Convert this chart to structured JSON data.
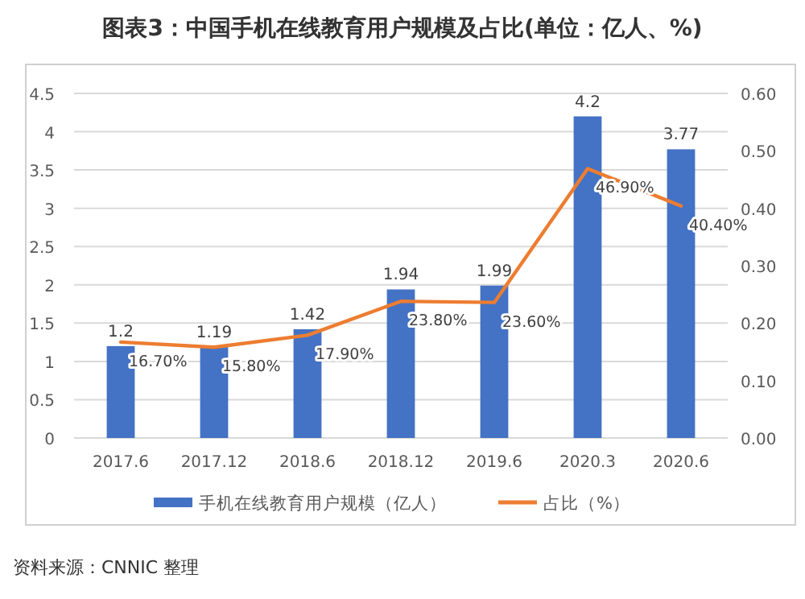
{
  "chart_data": {
    "type": "bar",
    "title": "图表3：中国手机在线教育用户规模及占比(单位：亿人、%)",
    "categories": [
      "2017.6",
      "2017.12",
      "2018.6",
      "2018.12",
      "2019.6",
      "2020.3",
      "2020.6"
    ],
    "series": [
      {
        "name": "手机在线教育用户规模（亿人）",
        "color": "#4472c4",
        "values": [
          1.2,
          1.19,
          1.42,
          1.94,
          1.99,
          4.2,
          3.77
        ],
        "value_labels": [
          "1.2",
          "1.19",
          "1.42",
          "1.94",
          "1.99",
          "4.2",
          "3.77"
        ]
      },
      {
        "name": "占比（%）",
        "type": "line",
        "axis": "y2",
        "color": "#ed7d31",
        "values": [
          0.167,
          0.158,
          0.179,
          0.238,
          0.236,
          0.469,
          0.404
        ],
        "value_labels": [
          "16.70%",
          "15.80%",
          "17.90%",
          "23.80%",
          "23.60%",
          "46.90%",
          "40.40%"
        ]
      }
    ],
    "ylim": [
      0,
      4.5
    ],
    "yticks": [
      0,
      0.5,
      1,
      1.5,
      2,
      2.5,
      3,
      3.5,
      4,
      4.5
    ],
    "y2lim": [
      0,
      0.6
    ],
    "y2ticks": [
      {
        "value": 0,
        "label": "0.00"
      },
      {
        "value": 0.1,
        "label": "0.10"
      },
      {
        "value": 0.2,
        "label": "0.20"
      },
      {
        "value": 0.3,
        "label": "0.30"
      },
      {
        "value": 0.4,
        "label": "0.40"
      },
      {
        "value": 0.5,
        "label": "0.50"
      },
      {
        "value": 0.6,
        "label": "0.60"
      }
    ],
    "grid": "y",
    "legend": "bottom",
    "marker": "none",
    "annotations": [
      "资料来源：CNNIC 整理"
    ]
  }
}
